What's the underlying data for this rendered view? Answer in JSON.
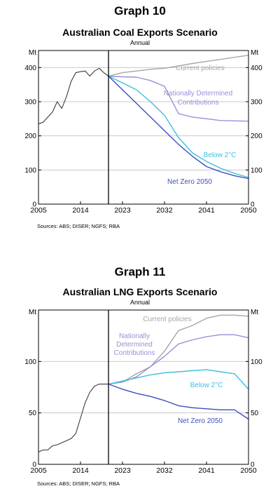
{
  "colors": {
    "grid": "#c8c8c8",
    "historical": "#3a3a3a",
    "current_policies": "#a6a6a6",
    "ndc": "#9b8fd6",
    "below2": "#3fbfe0",
    "net_zero": "#3a4fbf"
  },
  "chart_data": [
    {
      "type": "line",
      "graph_number": "Graph 10",
      "title": "Australian Coal Exports Scenario",
      "subtitle": "Annual",
      "unit_left": "Mt",
      "unit_right": "Mt",
      "ylim": [
        0,
        450
      ],
      "yticks": [
        0,
        100,
        200,
        300,
        400
      ],
      "xlim": [
        2005,
        2050
      ],
      "xticks": [
        2005,
        2014,
        2023,
        2032,
        2041,
        2050
      ],
      "divider_x": 2020,
      "source": "Sources: ABS; DISER; NGFS; RBA",
      "series": [
        {
          "key": "historical",
          "x": [
            2005,
            2006,
            2007,
            2008,
            2009,
            2010,
            2011,
            2012,
            2013,
            2014,
            2015,
            2016,
            2017,
            2018,
            2019,
            2020
          ],
          "y": [
            235,
            240,
            255,
            270,
            300,
            280,
            315,
            360,
            385,
            388,
            390,
            375,
            390,
            398,
            385,
            375
          ]
        },
        {
          "key": "current_policies",
          "name": "Current policies",
          "x": [
            2020,
            2023,
            2026,
            2029,
            2032,
            2035,
            2038,
            2041,
            2044,
            2047,
            2050
          ],
          "y": [
            375,
            385,
            390,
            395,
            398,
            405,
            412,
            418,
            424,
            430,
            436
          ]
        },
        {
          "key": "ndc",
          "name": "Nationally Determined Contributions",
          "x": [
            2020,
            2023,
            2026,
            2029,
            2032,
            2035,
            2038,
            2041,
            2044,
            2047,
            2050
          ],
          "y": [
            375,
            373,
            372,
            362,
            345,
            265,
            255,
            250,
            245,
            244,
            243
          ]
        },
        {
          "key": "below2",
          "name": "Below 2°C",
          "x": [
            2020,
            2023,
            2026,
            2029,
            2032,
            2035,
            2038,
            2041,
            2044,
            2047,
            2050
          ],
          "y": [
            375,
            355,
            335,
            300,
            260,
            195,
            150,
            125,
            105,
            90,
            78
          ]
        },
        {
          "key": "net_zero",
          "name": "Net Zero 2050",
          "x": [
            2020,
            2023,
            2026,
            2029,
            2032,
            2035,
            2038,
            2041,
            2044,
            2047,
            2050
          ],
          "y": [
            375,
            335,
            295,
            255,
            215,
            175,
            140,
            110,
            95,
            83,
            75
          ]
        }
      ],
      "labels": [
        {
          "key": "current_policies",
          "lines": [
            "Current policies"
          ]
        },
        {
          "key": "ndc",
          "lines": [
            "Nationally Determined",
            "Contributions"
          ]
        },
        {
          "key": "below2",
          "lines": [
            "Below 2°C"
          ]
        },
        {
          "key": "net_zero",
          "lines": [
            "Net Zero 2050"
          ]
        }
      ]
    },
    {
      "type": "line",
      "graph_number": "Graph 11",
      "title": "Australian LNG Exports Scenario",
      "subtitle": "Annual",
      "unit_left": "Mt",
      "unit_right": "Mt",
      "ylim": [
        0,
        150
      ],
      "yticks": [
        0,
        50,
        100
      ],
      "xlim": [
        2005,
        2050
      ],
      "xticks": [
        2005,
        2014,
        2023,
        2032,
        2041,
        2050
      ],
      "divider_x": 2020,
      "source": "Sources: ABS; DISER; NGFS; RBA",
      "series": [
        {
          "key": "historical",
          "x": [
            2005,
            2006,
            2007,
            2008,
            2009,
            2010,
            2011,
            2012,
            2013,
            2014,
            2015,
            2016,
            2017,
            2018,
            2019,
            2020
          ],
          "y": [
            12,
            14,
            14,
            18,
            19,
            21,
            23,
            25,
            30,
            45,
            60,
            70,
            76,
            78,
            78,
            78
          ]
        },
        {
          "key": "current_policies",
          "name": "Current policies",
          "x": [
            2020,
            2023,
            2026,
            2029,
            2032,
            2035,
            2038,
            2041,
            2044,
            2047,
            2050
          ],
          "y": [
            78,
            80,
            88,
            95,
            110,
            130,
            135,
            142,
            145,
            145,
            144
          ]
        },
        {
          "key": "ndc",
          "name": "Nationally Determined Contributions",
          "x": [
            2020,
            2023,
            2026,
            2029,
            2032,
            2035,
            2038,
            2041,
            2044,
            2047,
            2050
          ],
          "y": [
            78,
            80,
            85,
            95,
            105,
            117,
            121,
            124,
            126,
            126,
            123
          ]
        },
        {
          "key": "below2",
          "name": "Below 2°C",
          "x": [
            2020,
            2023,
            2026,
            2029,
            2032,
            2035,
            2038,
            2041,
            2044,
            2047,
            2050
          ],
          "y": [
            78,
            81,
            84,
            87,
            89,
            90,
            91,
            92,
            90,
            88,
            73
          ]
        },
        {
          "key": "net_zero",
          "name": "Net Zero 2050",
          "x": [
            2020,
            2023,
            2026,
            2029,
            2032,
            2035,
            2038,
            2041,
            2044,
            2047,
            2050
          ],
          "y": [
            78,
            73,
            69,
            66,
            62,
            57,
            55,
            54,
            53,
            53,
            44
          ]
        }
      ],
      "labels": [
        {
          "key": "current_policies",
          "lines": [
            "Current policies"
          ]
        },
        {
          "key": "ndc",
          "lines": [
            "Nationally",
            "Determined",
            "Contributions"
          ]
        },
        {
          "key": "below2",
          "lines": [
            "Below 2°C"
          ]
        },
        {
          "key": "net_zero",
          "lines": [
            "Net Zero 2050"
          ]
        }
      ]
    }
  ]
}
